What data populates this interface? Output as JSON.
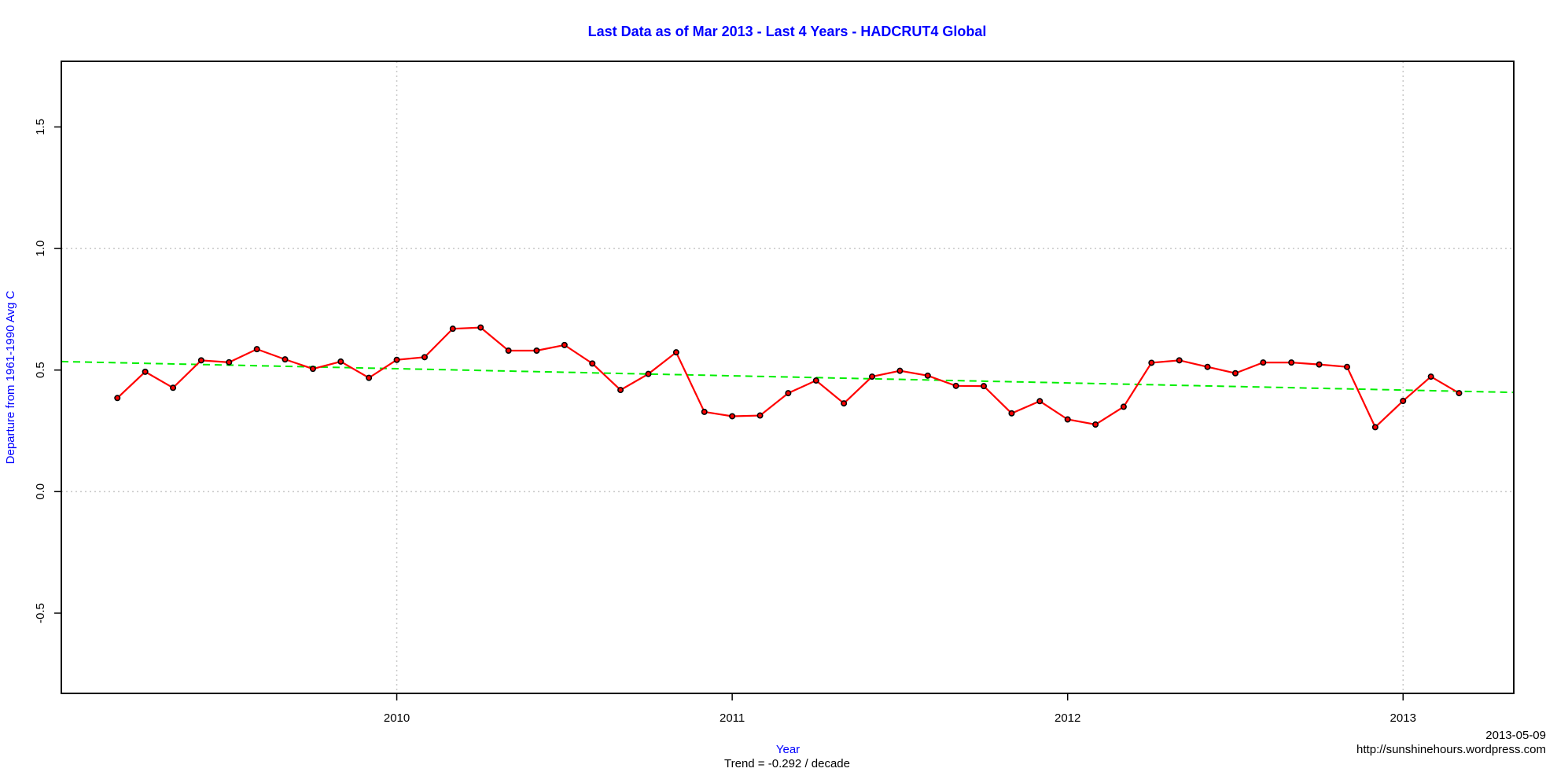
{
  "chart_data": {
    "type": "line",
    "title": "Last Data as of Mar 2013 - Last 4 Years - HADCRUT4 Global",
    "xlabel": "Year",
    "ylabel": "Departure from 1961-1990 Avg C",
    "xlim": [
      2009.0,
      2013.33
    ],
    "ylim": [
      -0.83,
      1.77
    ],
    "x_ticks": [
      2010,
      2011,
      2012,
      2013
    ],
    "y_ticks": [
      -0.5,
      0.0,
      0.5,
      1.0,
      1.5
    ],
    "y_tick_labels": [
      "-0.5",
      "0.0",
      "0.5",
      "1.0",
      "1.5"
    ],
    "grid": {
      "horizontal": [
        0.0,
        1.0
      ],
      "vertical": [
        2010,
        2013
      ],
      "style": "dotted"
    },
    "series": [
      {
        "color": "#ff0000",
        "marker": "circle",
        "x": [
          2009.167,
          2009.25,
          2009.333,
          2009.417,
          2009.5,
          2009.583,
          2009.667,
          2009.75,
          2009.833,
          2009.917,
          2010.0,
          2010.083,
          2010.167,
          2010.25,
          2010.333,
          2010.417,
          2010.5,
          2010.583,
          2010.667,
          2010.75,
          2010.833,
          2010.917,
          2011.0,
          2011.083,
          2011.167,
          2011.25,
          2011.333,
          2011.417,
          2011.5,
          2011.583,
          2011.667,
          2011.75,
          2011.833,
          2011.917,
          2012.0,
          2012.083,
          2012.167,
          2012.25,
          2012.333,
          2012.417,
          2012.5,
          2012.583,
          2012.667,
          2012.75,
          2012.833,
          2012.917,
          2013.0,
          2013.083,
          2013.167
        ],
        "values": [
          0.385,
          0.493,
          0.427,
          0.54,
          0.532,
          0.586,
          0.544,
          0.505,
          0.535,
          0.468,
          0.542,
          0.553,
          0.67,
          0.675,
          0.58,
          0.58,
          0.603,
          0.527,
          0.418,
          0.484,
          0.573,
          0.328,
          0.31,
          0.313,
          0.405,
          0.457,
          0.363,
          0.473,
          0.497,
          0.477,
          0.435,
          0.434,
          0.322,
          0.372,
          0.297,
          0.276,
          0.349,
          0.53,
          0.54,
          0.513,
          0.487,
          0.531,
          0.531,
          0.523,
          0.513,
          0.265,
          0.373,
          0.473,
          0.405
        ]
      },
      {
        "color": "#00ee00",
        "style": "dashed",
        "x": [
          2009.0,
          2013.33
        ],
        "values": [
          0.535,
          0.408
        ]
      }
    ]
  },
  "footer": {
    "trend_text": "Trend = -0.292 / decade",
    "date_text": "2013-05-09",
    "source_text": "http://sunshinehours.wordpress.com"
  }
}
